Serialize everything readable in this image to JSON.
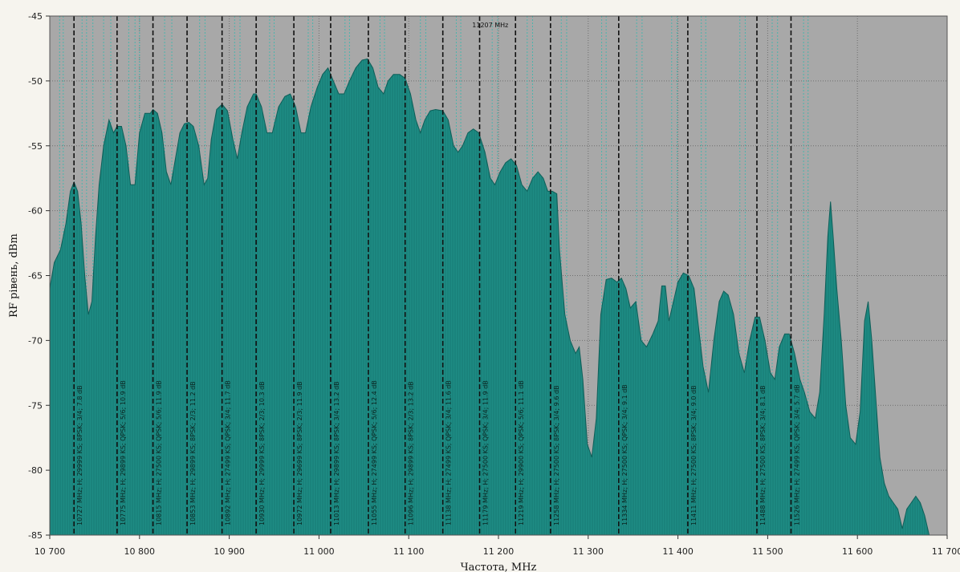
{
  "chart_data": {
    "type": "area",
    "title": "",
    "xlabel": "Частота, MHz",
    "ylabel": "RF рівень, dBm",
    "xlim": [
      10700,
      11700
    ],
    "ylim": [
      -85,
      -45
    ],
    "x_ticks": [
      10700,
      10800,
      10900,
      11000,
      11100,
      11200,
      11300,
      11400,
      11500,
      11600,
      11700
    ],
    "x_tick_labels": [
      "10 700",
      "10 800",
      "10 900",
      "11 000",
      "11 100",
      "11 200",
      "11 300",
      "11 400",
      "11 500",
      "11 600",
      "11 700"
    ],
    "y_ticks": [
      -45,
      -50,
      -55,
      -60,
      -65,
      -70,
      -75,
      -80,
      -85
    ],
    "y_tick_labels": [
      "-45",
      "-50",
      "-55",
      "-60",
      "-65",
      "-70",
      "-75",
      "-80",
      "-85"
    ],
    "grid": true,
    "marker_label": "11207 MHz",
    "marker_x": 11207,
    "colors": {
      "plot_bg": "#a8a8a8",
      "spectrum_fill": "#1e8c84",
      "spectrum_line": "#0e5f59",
      "transponder_line": "#111111",
      "marker_line": "#4bb5ad"
    },
    "spectrum": [
      [
        10700,
        -66
      ],
      [
        10705,
        -64
      ],
      [
        10712,
        -63
      ],
      [
        10718,
        -61
      ],
      [
        10723,
        -58.5
      ],
      [
        10727,
        -57.8
      ],
      [
        10731,
        -58.5
      ],
      [
        10735,
        -61
      ],
      [
        10739,
        -65
      ],
      [
        10743,
        -68
      ],
      [
        10747,
        -67
      ],
      [
        10751,
        -62
      ],
      [
        10755,
        -58
      ],
      [
        10760,
        -55
      ],
      [
        10766,
        -53
      ],
      [
        10771,
        -54
      ],
      [
        10775,
        -53.5
      ],
      [
        10780,
        -53.5
      ],
      [
        10785,
        -55
      ],
      [
        10790,
        -58
      ],
      [
        10795,
        -58
      ],
      [
        10800,
        -54
      ],
      [
        10806,
        -52.5
      ],
      [
        10812,
        -52.5
      ],
      [
        10815,
        -52.2
      ],
      [
        10820,
        -52.5
      ],
      [
        10825,
        -54
      ],
      [
        10830,
        -57
      ],
      [
        10835,
        -58
      ],
      [
        10840,
        -56
      ],
      [
        10845,
        -54
      ],
      [
        10850,
        -53.3
      ],
      [
        10855,
        -53.2
      ],
      [
        10860,
        -53.5
      ],
      [
        10866,
        -55
      ],
      [
        10872,
        -58
      ],
      [
        10876,
        -57.5
      ],
      [
        10880,
        -54.5
      ],
      [
        10886,
        -52.2
      ],
      [
        10892,
        -51.8
      ],
      [
        10898,
        -52.3
      ],
      [
        10904,
        -54.5
      ],
      [
        10909,
        -56
      ],
      [
        10914,
        -54
      ],
      [
        10920,
        -52
      ],
      [
        10927,
        -51
      ],
      [
        10930,
        -51
      ],
      [
        10936,
        -52
      ],
      [
        10942,
        -54
      ],
      [
        10948,
        -54
      ],
      [
        10955,
        -52
      ],
      [
        10962,
        -51.2
      ],
      [
        10968,
        -51.0
      ],
      [
        10974,
        -52
      ],
      [
        10980,
        -54
      ],
      [
        10985,
        -54
      ],
      [
        10991,
        -52
      ],
      [
        10998,
        -50.5
      ],
      [
        11004,
        -49.5
      ],
      [
        11010,
        -49
      ],
      [
        11016,
        -50
      ],
      [
        11022,
        -51
      ],
      [
        11028,
        -51
      ],
      [
        11034,
        -50
      ],
      [
        11041,
        -49
      ],
      [
        11048,
        -48.4
      ],
      [
        11054,
        -48.3
      ],
      [
        11060,
        -49
      ],
      [
        11066,
        -50.5
      ],
      [
        11072,
        -51
      ],
      [
        11077,
        -50
      ],
      [
        11083,
        -49.5
      ],
      [
        11090,
        -49.5
      ],
      [
        11096,
        -49.8
      ],
      [
        11102,
        -51
      ],
      [
        11108,
        -53
      ],
      [
        11113,
        -54
      ],
      [
        11118,
        -53
      ],
      [
        11124,
        -52.3
      ],
      [
        11130,
        -52.2
      ],
      [
        11138,
        -52.3
      ],
      [
        11144,
        -53
      ],
      [
        11150,
        -55
      ],
      [
        11155,
        -55.5
      ],
      [
        11160,
        -55
      ],
      [
        11166,
        -54
      ],
      [
        11172,
        -53.7
      ],
      [
        11178,
        -54
      ],
      [
        11185,
        -55.5
      ],
      [
        11191,
        -57.5
      ],
      [
        11196,
        -58
      ],
      [
        11202,
        -57
      ],
      [
        11208,
        -56.3
      ],
      [
        11214,
        -56
      ],
      [
        11220,
        -56.5
      ],
      [
        11226,
        -58
      ],
      [
        11232,
        -58.5
      ],
      [
        11238,
        -57.5
      ],
      [
        11244,
        -57
      ],
      [
        11250,
        -57.5
      ],
      [
        11255,
        -58.5
      ],
      [
        11260,
        -58.5
      ],
      [
        11265,
        -58.7
      ],
      [
        11268,
        -63
      ],
      [
        11274,
        -68
      ],
      [
        11280,
        -70
      ],
      [
        11286,
        -71
      ],
      [
        11290,
        -70.5
      ],
      [
        11294,
        -73
      ],
      [
        11299,
        -78
      ],
      [
        11304,
        -79
      ],
      [
        11309,
        -76
      ],
      [
        11314,
        -68
      ],
      [
        11320,
        -65.3
      ],
      [
        11326,
        -65.2
      ],
      [
        11332,
        -65.5
      ],
      [
        11337,
        -65.2
      ],
      [
        11342,
        -66
      ],
      [
        11347,
        -67.5
      ],
      [
        11353,
        -67
      ],
      [
        11359,
        -70
      ],
      [
        11365,
        -70.5
      ],
      [
        11372,
        -69.5
      ],
      [
        11378,
        -68.5
      ],
      [
        11382,
        -65.8
      ],
      [
        11386,
        -65.8
      ],
      [
        11390,
        -68.5
      ],
      [
        11395,
        -67
      ],
      [
        11400,
        -65.5
      ],
      [
        11406,
        -64.8
      ],
      [
        11412,
        -65
      ],
      [
        11418,
        -66
      ],
      [
        11423,
        -69
      ],
      [
        11428,
        -72
      ],
      [
        11434,
        -74
      ],
      [
        11440,
        -70
      ],
      [
        11446,
        -67
      ],
      [
        11451,
        -66.2
      ],
      [
        11456,
        -66.5
      ],
      [
        11462,
        -68
      ],
      [
        11468,
        -71
      ],
      [
        11474,
        -72.5
      ],
      [
        11480,
        -70
      ],
      [
        11486,
        -68.2
      ],
      [
        11491,
        -68.2
      ],
      [
        11497,
        -70
      ],
      [
        11503,
        -72.5
      ],
      [
        11508,
        -73
      ],
      [
        11513,
        -70.5
      ],
      [
        11519,
        -69.5
      ],
      [
        11524,
        -69.5
      ],
      [
        11530,
        -71
      ],
      [
        11536,
        -73
      ],
      [
        11541,
        -74
      ],
      [
        11547,
        -75.5
      ],
      [
        11553,
        -76
      ],
      [
        11558,
        -74
      ],
      [
        11563,
        -68
      ],
      [
        11567,
        -62
      ],
      [
        11570,
        -59.3
      ],
      [
        11573,
        -62
      ],
      [
        11577,
        -66
      ],
      [
        11582,
        -70
      ],
      [
        11587,
        -75
      ],
      [
        11592,
        -77.5
      ],
      [
        11598,
        -78
      ],
      [
        11603,
        -75.5
      ],
      [
        11608,
        -68.5
      ],
      [
        11612,
        -67
      ],
      [
        11616,
        -70
      ],
      [
        11620,
        -74
      ],
      [
        11625,
        -79
      ],
      [
        11630,
        -81
      ],
      [
        11635,
        -82
      ],
      [
        11640,
        -82.5
      ],
      [
        11645,
        -83
      ],
      [
        11650,
        -84.5
      ],
      [
        11655,
        -83
      ],
      [
        11660,
        -82.5
      ],
      [
        11665,
        -82
      ],
      [
        11670,
        -82.5
      ],
      [
        11675,
        -83.5
      ],
      [
        11680,
        -85
      ],
      [
        11690,
        -85
      ],
      [
        11700,
        -85
      ]
    ],
    "transponders": [
      {
        "freq": 10727,
        "label": "10727 MHz; H; 29999 KS; 8PSK; 3/4; 7.8 dB"
      },
      {
        "freq": 10775,
        "label": "10775 MHz; H; 29899 KS; QPSK; 5/6; 10.9 dB"
      },
      {
        "freq": 10815,
        "label": "10815 MHz; H; 27500 KS; QPSK; 5/6; 11.9 dB"
      },
      {
        "freq": 10853,
        "label": "10853 MHz; H; 29899 KS; 8PSK; 2/3; 11.2 dB"
      },
      {
        "freq": 10892,
        "label": "10892 MHz; H; 27499 KS; QPSK; 3/4; 11.7 dB"
      },
      {
        "freq": 10930,
        "label": "10930 MHz; H; 29999 KS; 8PSK; 2/3; 10.3 dB"
      },
      {
        "freq": 10972,
        "label": "10972 MHz; H; 29699 KS; 8PSK; 2/3; 11.9 dB"
      },
      {
        "freq": 11013,
        "label": "11013 MHz; H; 29899 KS; 8PSK; 3/4; 13.2 dB"
      },
      {
        "freq": 11055,
        "label": "11055 MHz; H; 27499 KS; QPSK; 5/6; 12.4 dB"
      },
      {
        "freq": 11096,
        "label": "11096 MHz; H; 29899 KS; 8PSK; 2/3; 13.2 dB"
      },
      {
        "freq": 11138,
        "label": "11138 MHz; H; 27499 KS; QPSK; 3/4; 11.6 dB"
      },
      {
        "freq": 11179,
        "label": "11179 MHz; H; 27500 KS; QPSK; 3/4; 11.9 dB"
      },
      {
        "freq": 11219,
        "label": "11219 MHz; H; 29900 KS; QPSK; 5/6; 11.1 dB"
      },
      {
        "freq": 11258,
        "label": "11258 MHz; H; 27500 KS; 8PSK; 3/4; 9.6 dB"
      },
      {
        "freq": 11334,
        "label": "11334 MHz; H; 27500 KS; QPSK; 3/4; 9.1 dB"
      },
      {
        "freq": 11411,
        "label": "11411 MHz; H; 27500 KS; 8PSK; 3/4; 9.0 dB"
      },
      {
        "freq": 11488,
        "label": "11488 MHz; H; 27500 KS; 8PSK; 3/4; 8.1 dB"
      },
      {
        "freq": 11526,
        "label": "11526 MHz; H; 27499 KS; QPSK; 3/4; 5.7 dB"
      }
    ],
    "cyan_markers": [
      10711,
      10715,
      10736,
      10741,
      10748,
      10760,
      10768,
      10788,
      10795,
      10800,
      10828,
      10836,
      10867,
      10873,
      10906,
      10912,
      10945,
      10950,
      10988,
      10993,
      11029,
      11034,
      11068,
      11073,
      11113,
      11119,
      11153,
      11158,
      11193,
      11199,
      11232,
      11238,
      11270,
      11276,
      11315,
      11320,
      11354,
      11360,
      11393,
      11399,
      11426,
      11431,
      11469,
      11475,
      11505,
      11511,
      11540,
      11545
    ]
  }
}
